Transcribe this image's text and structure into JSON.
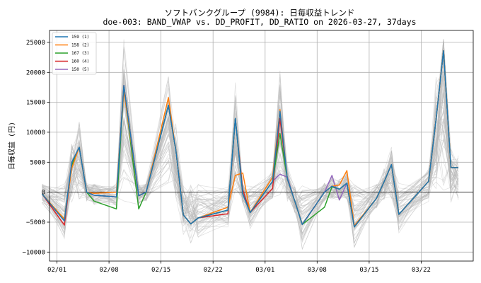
{
  "chart_data": {
    "type": "line",
    "title": "ソフトバンクグループ (9984): 日毎収益トレンド",
    "subtitle": "doe-003: BAND_VWAP vs. DD_PROFIT, DD_RATIO on 2026-03-27, 37days",
    "xlabel": "",
    "ylabel": "日毎収益 (円)",
    "x_ticks": [
      "02/01",
      "02/08",
      "02/15",
      "02/22",
      "03/01",
      "03/08",
      "03/15",
      "03/22"
    ],
    "y_ticks": [
      -10000,
      -5000,
      0,
      5000,
      10000,
      15000,
      20000,
      25000
    ],
    "y_tick_labels": [
      "−10000",
      "−5000",
      "0",
      "5000",
      "10000",
      "15000",
      "20000",
      "25000"
    ],
    "ylim": [
      -11500,
      27000
    ],
    "xlim": [
      -1.0,
      56.0
    ],
    "grid": true,
    "legend_position": "top-left",
    "dates": [
      "01/30",
      "02/02",
      "02/03",
      "02/04",
      "02/05",
      "02/06",
      "02/09",
      "02/10",
      "02/12",
      "02/13",
      "02/16",
      "02/17",
      "02/18",
      "02/19",
      "02/20",
      "02/24",
      "02/25",
      "02/26",
      "02/27",
      "03/02",
      "03/03",
      "03/04",
      "03/05",
      "03/06",
      "03/09",
      "03/10",
      "03/11",
      "03/12",
      "03/13",
      "03/16",
      "03/17",
      "03/18",
      "03/19",
      "03/23",
      "03/24",
      "03/25",
      "03/26",
      "03/27"
    ],
    "series": [
      {
        "name": "159 (1)",
        "color": "#1f77b4",
        "values": [
          -300,
          -4800,
          5000,
          7500,
          0,
          -500,
          -800,
          17800,
          -600,
          0,
          14500,
          7000,
          -3800,
          -5300,
          -4300,
          -3000,
          12300,
          -300,
          -3400,
          1800,
          13500,
          2200,
          -1500,
          -5400,
          0,
          1000,
          500,
          1500,
          -5800,
          -1000,
          1700,
          4600,
          -3700,
          1800,
          12200,
          23600,
          4100,
          4100
        ]
      },
      {
        "name": "158 (2)",
        "color": "#ff7f0e",
        "values": [
          -300,
          -4500,
          4000,
          7500,
          0,
          -200,
          0,
          17000,
          -600,
          0,
          15800,
          7000,
          -3800,
          -5300,
          -4300,
          -2500,
          2800,
          3200,
          -3400,
          2500,
          13800,
          2200,
          -1500,
          -5400,
          0,
          1000,
          1200,
          3600,
          -5600,
          -1000,
          1700,
          4600,
          -3700,
          1800,
          12200,
          23600,
          4100,
          4100
        ]
      },
      {
        "name": "167 (3)",
        "color": "#2ca02c",
        "values": [
          -300,
          -4500,
          4500,
          7500,
          0,
          -1500,
          -2800,
          17500,
          -2800,
          0,
          14500,
          7000,
          -3800,
          -5300,
          -4300,
          -3000,
          12300,
          -300,
          -3400,
          1800,
          9800,
          2200,
          -1500,
          -5400,
          -2500,
          900,
          500,
          1500,
          -5800,
          -1000,
          1700,
          4600,
          -3700,
          1800,
          12200,
          23600,
          4100,
          4100
        ]
      },
      {
        "name": "160 (4)",
        "color": "#d62728",
        "values": [
          -300,
          -5500,
          4500,
          7500,
          0,
          -500,
          -800,
          17800,
          -600,
          0,
          14500,
          7000,
          -3800,
          -5300,
          -4300,
          -3600,
          12300,
          400,
          -3400,
          600,
          12300,
          2200,
          -1500,
          -5400,
          0,
          1000,
          500,
          1500,
          -5800,
          -1000,
          1700,
          4600,
          -3700,
          1800,
          12200,
          23600,
          4100,
          4100
        ]
      },
      {
        "name": "150 (5)",
        "color": "#9467bd",
        "values": [
          -300,
          -4800,
          5000,
          7500,
          0,
          -500,
          -800,
          17800,
          -600,
          0,
          14500,
          7000,
          -3800,
          -5300,
          -4300,
          -3000,
          12300,
          -300,
          -3400,
          1800,
          3000,
          2500,
          -1500,
          -5400,
          0,
          2800,
          -1300,
          1500,
          -5800,
          -1000,
          1700,
          4600,
          -3700,
          1800,
          12200,
          23600,
          4100,
          4100
        ]
      }
    ]
  }
}
